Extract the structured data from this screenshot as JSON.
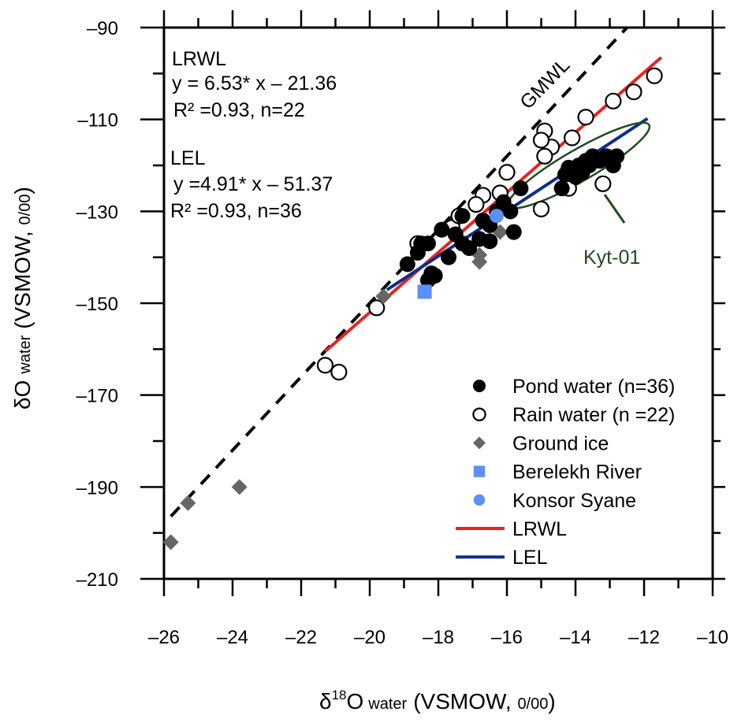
{
  "chart_data": {
    "type": "scatter",
    "xlabel": {
      "main": "δ",
      "sup": "18",
      "rest": "O",
      "sub": "water",
      "tail": "(VSMOW, ",
      "permil": "0/00",
      "close": ")"
    },
    "ylabel": {
      "main": "δO",
      "sub": "water",
      "tail": "(VSMOW, ",
      "permil": "0/00",
      "close": ")"
    },
    "xlim": [
      -26,
      -10
    ],
    "ylim": [
      -210,
      -90
    ],
    "xticks": [
      -26,
      -24,
      -22,
      -20,
      -18,
      -16,
      -14,
      -12,
      -10
    ],
    "yticks": [
      -90,
      -110,
      -130,
      -150,
      -170,
      -190,
      -210
    ],
    "xtick_labels": [
      "–26",
      "–24",
      "–22",
      "–20",
      "–18",
      "–16",
      "–14",
      "–12",
      "–10"
    ],
    "ytick_labels": [
      "–90",
      "–110",
      "–130",
      "–150",
      "–170",
      "–190",
      "–210"
    ],
    "annotations": {
      "lrwl": {
        "title": "LRWL",
        "eq": "y = 6.53* x – 21.36",
        "r2": "R² =0.93, n=22"
      },
      "lel": {
        "title": "LEL",
        "eq": "y =4.91* x – 51.37",
        "r2": "R² =0.93, n=36"
      },
      "gmwl": "GMWL",
      "kyt": "Kyt-01"
    },
    "legend": {
      "placement": "bottom-right",
      "entries": [
        {
          "label": "Pond water (n=36)",
          "marker": "filled-circle",
          "color": "#000000"
        },
        {
          "label": "Rain water (n =22)",
          "marker": "open-circle",
          "color": "#000000"
        },
        {
          "label": "Ground ice",
          "marker": "diamond",
          "color": "#666666"
        },
        {
          "label": "Berelekh River",
          "marker": "square",
          "color": "#5b8ff9"
        },
        {
          "label": "Konsor Syane",
          "marker": "circle",
          "color": "#5b8ff9"
        },
        {
          "label": "LRWL",
          "marker": "line",
          "color": "#e8231f"
        },
        {
          "label": "LEL",
          "marker": "line",
          "color": "#0b2f8a"
        }
      ]
    },
    "lines": [
      {
        "name": "GMWL",
        "color": "#000000",
        "dashed": true,
        "x": [
          -25.8,
          -12.5
        ],
        "y": [
          -196.4,
          -90.0
        ]
      },
      {
        "name": "LRWL",
        "color": "#e8231f",
        "dashed": false,
        "x": [
          -21.3,
          -11.5
        ],
        "y": [
          -160.5,
          -96.5
        ]
      },
      {
        "name": "LEL",
        "color": "#0b2f8a",
        "dashed": false,
        "x": [
          -19.5,
          -11.9
        ],
        "y": [
          -147.1,
          -109.8
        ]
      }
    ],
    "kyt_ellipse": {
      "cx": -13.9,
      "cy": -120.0,
      "rx": 1.35,
      "ry": 6.2,
      "angle": -30,
      "color": "#1f4a1f"
    },
    "series": [
      {
        "name": "Pond water",
        "marker": "filled-circle",
        "color": "#000000",
        "points": [
          [
            -18.9,
            -141.5
          ],
          [
            -18.5,
            -137
          ],
          [
            -18.3,
            -137
          ],
          [
            -18.2,
            -143.5
          ],
          [
            -18.3,
            -145
          ],
          [
            -18.1,
            -144
          ],
          [
            -17.7,
            -140
          ],
          [
            -17.3,
            -137
          ],
          [
            -17.1,
            -138
          ],
          [
            -16.8,
            -136
          ],
          [
            -16.5,
            -133
          ],
          [
            -16.3,
            -130
          ],
          [
            -16.1,
            -128
          ],
          [
            -15.8,
            -134.5
          ],
          [
            -15.6,
            -125
          ],
          [
            -16.5,
            -136.5
          ],
          [
            -14.4,
            -125
          ],
          [
            -14.3,
            -122
          ],
          [
            -14.1,
            -121
          ],
          [
            -13.9,
            -120
          ],
          [
            -13.7,
            -119
          ],
          [
            -13.5,
            -118
          ],
          [
            -13.3,
            -119
          ],
          [
            -13.1,
            -118
          ],
          [
            -12.9,
            -120
          ],
          [
            -12.8,
            -118
          ],
          [
            -13.8,
            -121.5
          ],
          [
            -14.2,
            -120.5
          ],
          [
            -13.6,
            -120
          ],
          [
            -14.0,
            -122.5
          ],
          [
            -17.3,
            -131
          ],
          [
            -16.7,
            -132
          ],
          [
            -17.5,
            -135
          ],
          [
            -15.9,
            -130
          ],
          [
            -18.6,
            -139
          ],
          [
            -17.9,
            -134
          ]
        ]
      },
      {
        "name": "Rain water",
        "marker": "open-circle",
        "color": "#000000",
        "points": [
          [
            -21.3,
            -163.5
          ],
          [
            -20.9,
            -165
          ],
          [
            -19.8,
            -151
          ],
          [
            -18.6,
            -137
          ],
          [
            -17.6,
            -133.5
          ],
          [
            -16.7,
            -126.5
          ],
          [
            -16.2,
            -126
          ],
          [
            -16.0,
            -121.5
          ],
          [
            -15.0,
            -129.5
          ],
          [
            -14.9,
            -112.5
          ],
          [
            -14.7,
            -116
          ],
          [
            -14.9,
            -118
          ],
          [
            -14.1,
            -114
          ],
          [
            -13.7,
            -109.5
          ],
          [
            -13.2,
            -124
          ],
          [
            -12.9,
            -106
          ],
          [
            -12.3,
            -104
          ],
          [
            -11.7,
            -100.5
          ],
          [
            -14.2,
            -125
          ],
          [
            -15.0,
            -114.5
          ],
          [
            -16.9,
            -128.5
          ],
          [
            -17.4,
            -131
          ]
        ]
      },
      {
        "name": "Ground ice",
        "marker": "diamond",
        "color": "#666666",
        "points": [
          [
            -25.8,
            -202
          ],
          [
            -25.3,
            -193.5
          ],
          [
            -23.8,
            -190
          ],
          [
            -19.6,
            -148.5
          ],
          [
            -16.8,
            -139.5
          ],
          [
            -16.8,
            -141
          ],
          [
            -16.2,
            -134.5
          ]
        ]
      },
      {
        "name": "Berelekh River",
        "marker": "square",
        "color": "#5b8ff9",
        "points": [
          [
            -18.4,
            -147.5
          ]
        ]
      },
      {
        "name": "Konsor Syane",
        "marker": "circle",
        "color": "#5b8ff9",
        "points": [
          [
            -16.3,
            -131
          ]
        ]
      }
    ]
  }
}
